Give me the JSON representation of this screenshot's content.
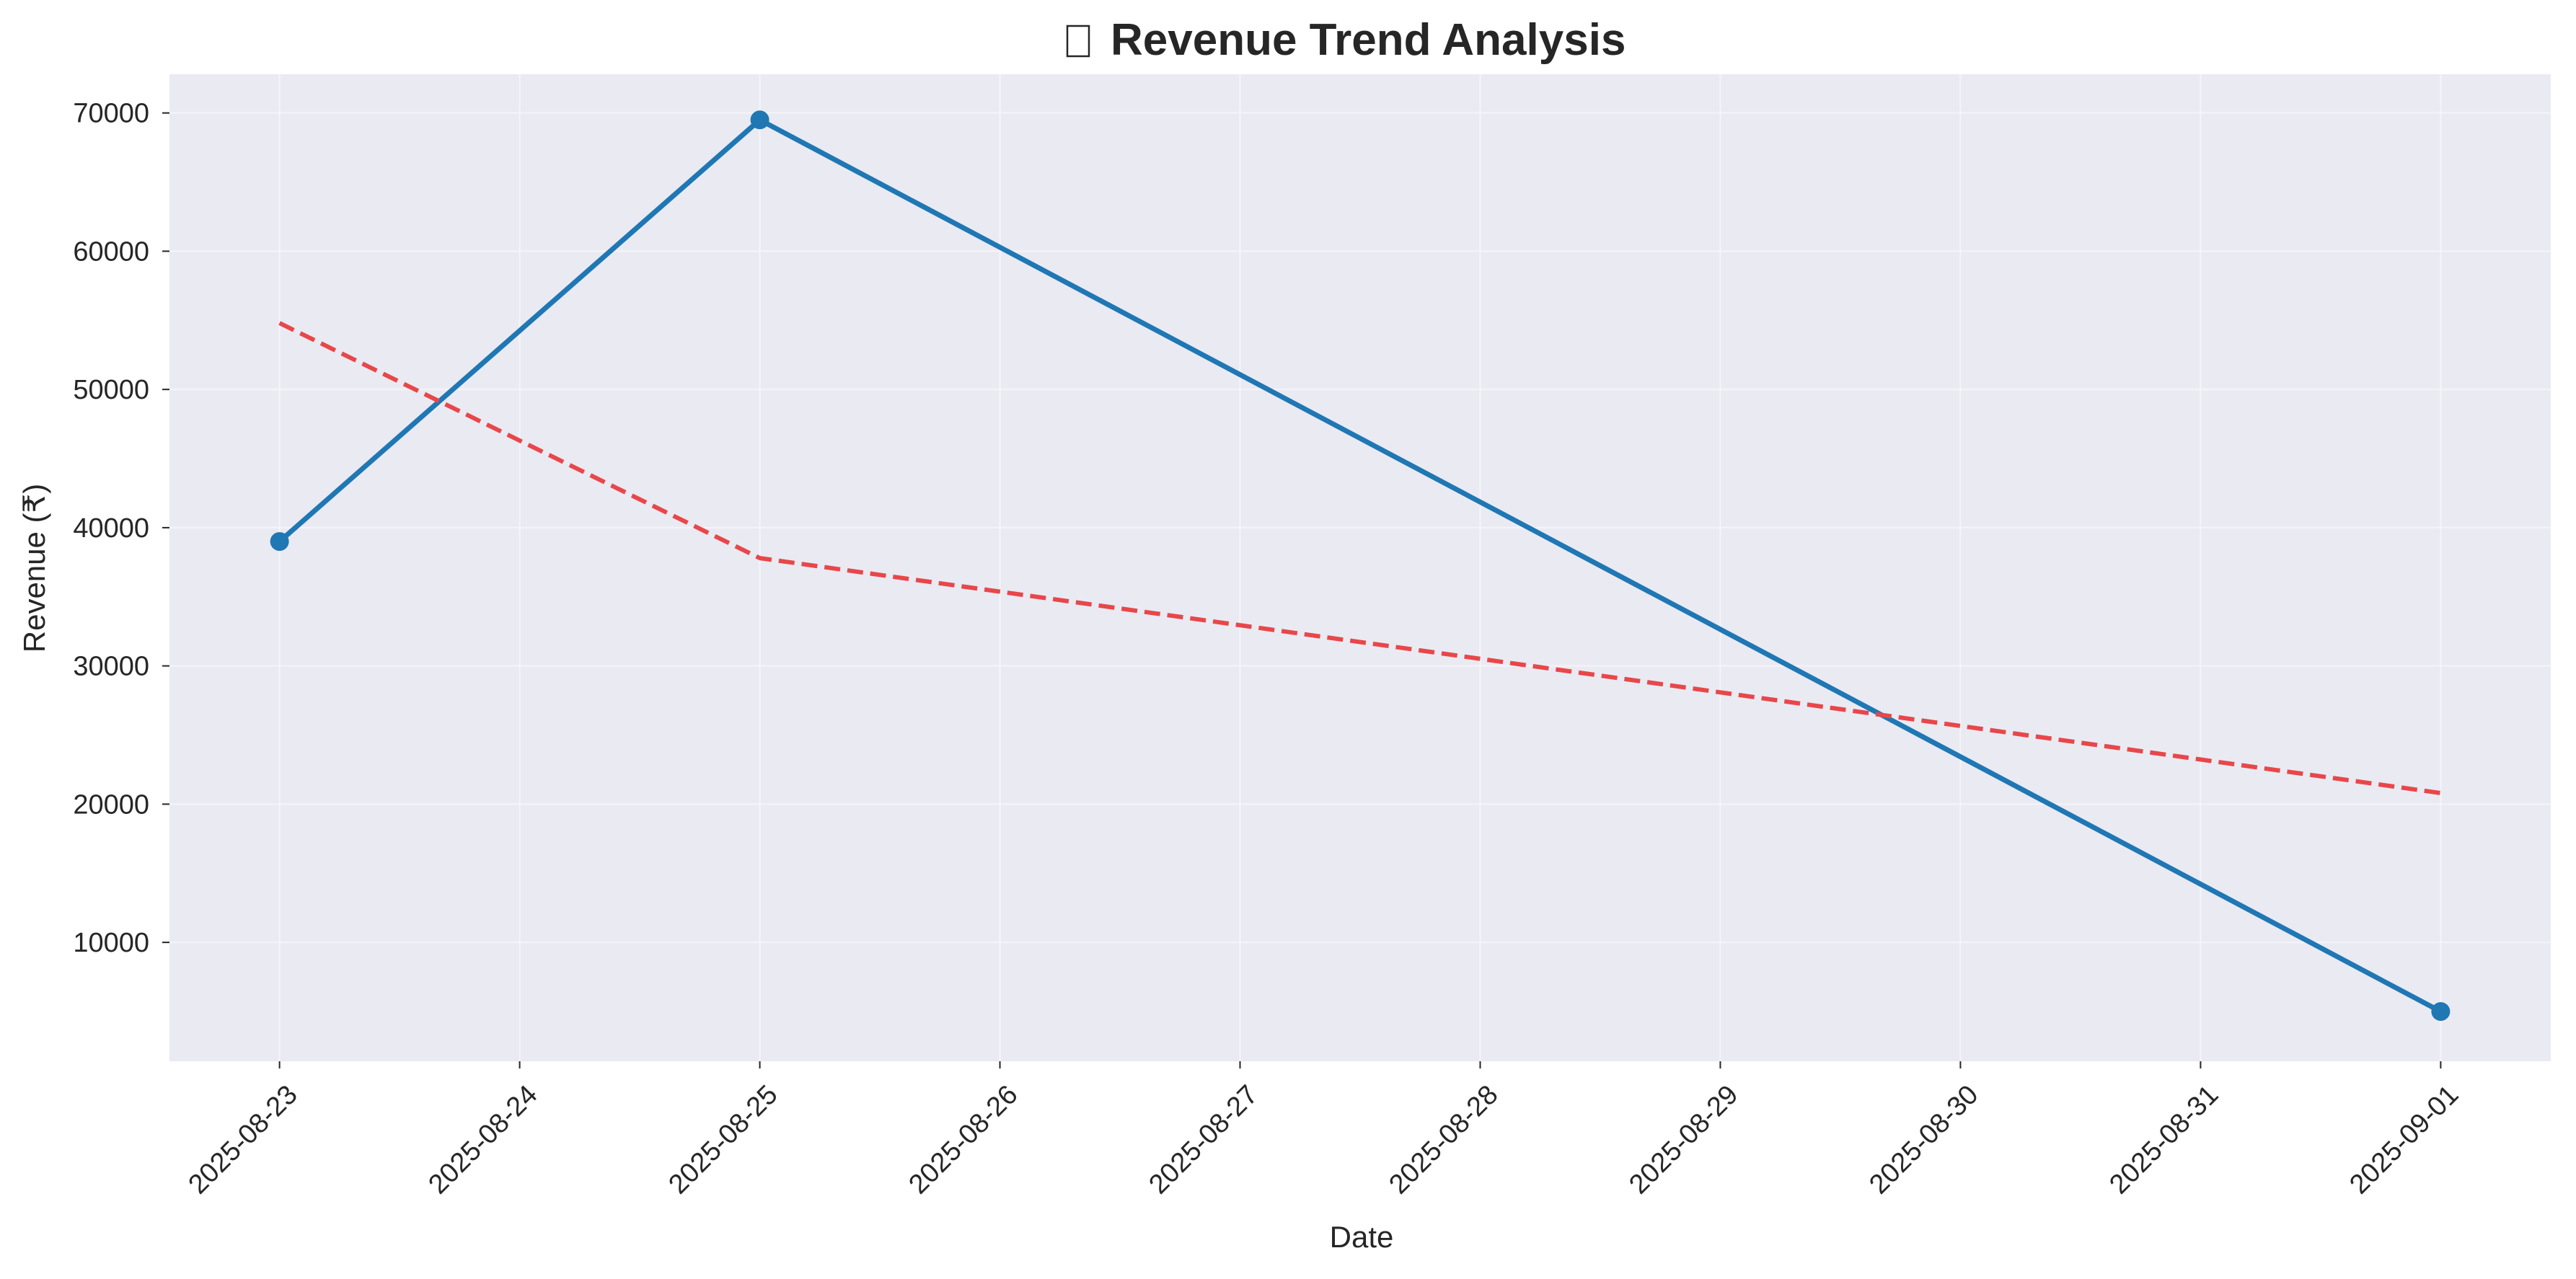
{
  "chart_data": {
    "type": "line",
    "title": "Revenue Trend Analysis",
    "title_icon": "chart-emoji-icon",
    "xlabel": "Date",
    "ylabel": "Revenue (₹)",
    "x_ticks": [
      "2025-08-23",
      "2025-08-24",
      "2025-08-25",
      "2025-08-26",
      "2025-08-27",
      "2025-08-28",
      "2025-08-29",
      "2025-08-30",
      "2025-08-31",
      "2025-09-01"
    ],
    "y_ticks": [
      10000,
      20000,
      30000,
      40000,
      50000,
      60000,
      70000
    ],
    "xlim": [
      "2025-08-22T13:00",
      "2025-09-01T11:00"
    ],
    "ylim": [
      1400,
      72800
    ],
    "grid": true,
    "legend": "none",
    "series": [
      {
        "style": "solid",
        "color": "#1f77b4",
        "markers": true,
        "x": [
          "2025-08-23",
          "2025-08-25",
          "2025-09-01"
        ],
        "y": [
          39000,
          69500,
          5000
        ]
      },
      {
        "style": "dashed",
        "color": "#e8474a",
        "markers": false,
        "x": [
          "2025-08-23",
          "2025-08-25",
          "2025-09-01"
        ],
        "y": [
          54800,
          37800,
          20800
        ]
      }
    ]
  }
}
